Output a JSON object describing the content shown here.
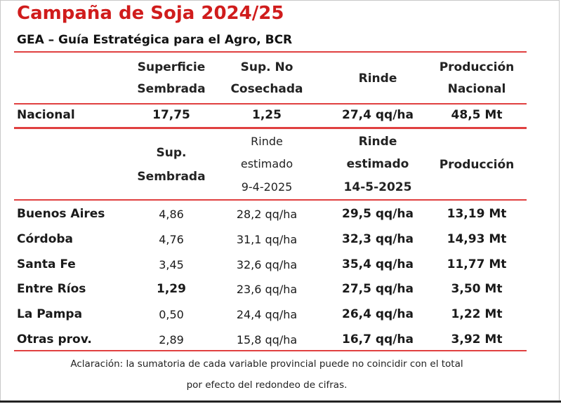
{
  "title": "Campaña de Soja 2024/25",
  "subtitle": "GEA – Guía Estratégica para el Agro, BCR",
  "national_header": {
    "col1": [
      "Superficie",
      "Sembrada"
    ],
    "col2": [
      "Sup. No",
      "Cosechada"
    ],
    "col3": "Rinde",
    "col4": [
      "Producción",
      "Nacional"
    ]
  },
  "national_row": {
    "label": "Nacional",
    "superficie": "17,75",
    "no_cosechada": "1,25",
    "rinde": "27,4 qq/ha",
    "produccion": "48,5 Mt"
  },
  "province_header": {
    "col1": [
      "Sup.",
      "Sembrada"
    ],
    "col2": [
      "Rinde",
      "estimado",
      "9-4-2025"
    ],
    "col3": [
      "Rinde",
      "estimado",
      "14-5-2025"
    ],
    "col4": "Producción"
  },
  "provinces": [
    {
      "name": "Buenos Aires",
      "sup": "4,86",
      "rinde_prev": "28,2 qq/ha",
      "rinde": "29,5 qq/ha",
      "prod": "13,19 Mt"
    },
    {
      "name": "Córdoba",
      "sup": "4,76",
      "rinde_prev": "31,1 qq/ha",
      "rinde": "32,3 qq/ha",
      "prod": "14,93 Mt"
    },
    {
      "name": "Santa Fe",
      "sup": "3,45",
      "rinde_prev": "32,6 qq/ha",
      "rinde": "35,4 qq/ha",
      "prod": "11,77 Mt"
    },
    {
      "name": "Entre Ríos",
      "sup": "1,29",
      "rinde_prev": "23,6 qq/ha",
      "rinde": "27,5 qq/ha",
      "prod": "3,50 Mt"
    },
    {
      "name": "La Pampa",
      "sup": "0,50",
      "rinde_prev": "24,4 qq/ha",
      "rinde": "26,4 qq/ha",
      "prod": "1,22 Mt"
    },
    {
      "name": "Otras prov.",
      "sup": "2,89",
      "rinde_prev": "15,8 qq/ha",
      "rinde": "16,7 qq/ha",
      "prod": "3,92 Mt"
    }
  ],
  "footnote": [
    "Aclaración: la sumatoria de cada variable provincial puede no coincidir con el total",
    "por efecto del redondeo de cifras."
  ],
  "colors": {
    "title": "#d01c1c",
    "rule": "#e04040"
  }
}
